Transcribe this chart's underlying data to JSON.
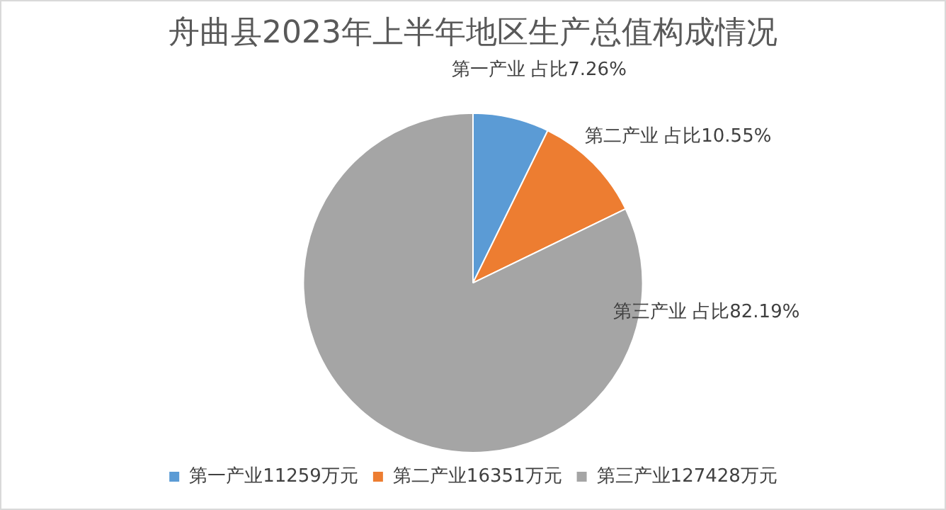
{
  "chart_data": {
    "type": "pie",
    "title": "舟曲县2023年上半年地区生产总值构成情况",
    "categories": [
      "第一产业11259万元",
      "第二产业16351万元",
      "第三产业127428万元"
    ],
    "values": [
      11259,
      16351,
      127428
    ],
    "colors": [
      "#5b9bd5",
      "#ed7d31",
      "#a5a5a5"
    ],
    "value_labels": [
      "第一产业 占比7.26%",
      "第二产业 占比10.55%",
      "第三产业 占比82.19%"
    ],
    "legend": "bottom"
  }
}
